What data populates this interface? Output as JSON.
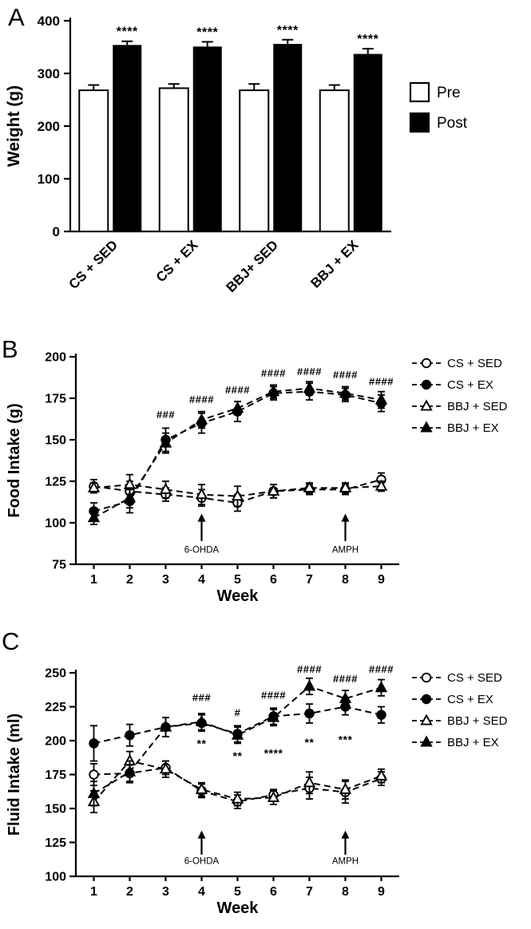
{
  "figure": {
    "background": "#ffffff",
    "ink": "#000000"
  },
  "panels": {
    "a": {
      "letter": "A"
    },
    "b": {
      "letter": "B"
    },
    "c": {
      "letter": "C"
    }
  },
  "chart_data": [
    {
      "id": "weight",
      "panel": "A",
      "type": "bar",
      "title": "",
      "ylabel": "Weight (g)",
      "xlabel": "",
      "ylim": [
        0,
        400
      ],
      "yticks": [
        0,
        100,
        200,
        300,
        400
      ],
      "categories": [
        "CS + SED",
        "CS + EX",
        "BBJ+ SED",
        "BBJ + EX"
      ],
      "series": [
        {
          "name": "Pre",
          "fill": "open",
          "values": [
            268,
            272,
            268,
            268
          ],
          "errors": [
            10,
            8,
            12,
            10
          ]
        },
        {
          "name": "Post",
          "fill": "solid",
          "values": [
            354,
            351,
            356,
            337
          ],
          "errors": [
            7,
            9,
            8,
            10
          ],
          "significance": [
            "****",
            "****",
            "****",
            "****"
          ]
        }
      ],
      "legend": [
        {
          "label": "Pre",
          "swatch": "open-square"
        },
        {
          "label": "Post",
          "swatch": "solid-square"
        }
      ]
    },
    {
      "id": "food-intake",
      "panel": "B",
      "type": "line",
      "title": "",
      "ylabel": "Food Intake (g)",
      "xlabel": "Week",
      "ylim": [
        75,
        200
      ],
      "yticks": [
        75,
        100,
        125,
        150,
        175,
        200
      ],
      "x": [
        1,
        2,
        3,
        4,
        5,
        6,
        7,
        8,
        9
      ],
      "series": [
        {
          "name": "CS + SED",
          "marker": "open-circle",
          "values": [
            122,
            119,
            117,
            115,
            112,
            119,
            120,
            120,
            126
          ],
          "errors": [
            4,
            6,
            4,
            5,
            5,
            4,
            3,
            3,
            4
          ]
        },
        {
          "name": "CS + EX",
          "marker": "solid-circle",
          "values": [
            107,
            113,
            150,
            160,
            167,
            178,
            179,
            177,
            172
          ],
          "errors": [
            5,
            7,
            7,
            6,
            6,
            4,
            5,
            4,
            5
          ]
        },
        {
          "name": "BBJ + SED",
          "marker": "open-triangle",
          "values": [
            121,
            123,
            120,
            117,
            116,
            119,
            121,
            121,
            122
          ],
          "errors": [
            3,
            6,
            5,
            6,
            6,
            4,
            3,
            3,
            3
          ]
        },
        {
          "name": "BBJ + EX",
          "marker": "solid-triangle",
          "values": [
            103,
            115,
            148,
            162,
            169,
            179,
            181,
            178,
            174
          ],
          "errors": [
            4,
            6,
            6,
            5,
            4,
            4,
            4,
            4,
            5
          ]
        }
      ],
      "annotations": {
        "hash": [
          {
            "x": 3,
            "y": 163,
            "text": "###"
          },
          {
            "x": 4,
            "y": 172,
            "text": "####"
          },
          {
            "x": 5,
            "y": 178,
            "text": "####"
          },
          {
            "x": 6,
            "y": 188,
            "text": "####"
          },
          {
            "x": 7,
            "y": 189,
            "text": "####"
          },
          {
            "x": 8,
            "y": 187,
            "text": "####"
          },
          {
            "x": 9,
            "y": 183,
            "text": "####"
          }
        ],
        "stars": [],
        "arrows": [
          {
            "x": 4,
            "y_from": 89,
            "y_to": 104,
            "label": "6-OHDA",
            "label_y": 82
          },
          {
            "x": 8,
            "y_from": 89,
            "y_to": 104,
            "label": "AMPH",
            "label_y": 82
          }
        ]
      },
      "legend": [
        {
          "label": "CS + SED",
          "marker": "open-circle"
        },
        {
          "label": "CS + EX",
          "marker": "solid-circle"
        },
        {
          "label": "BBJ + SED",
          "marker": "open-triangle"
        },
        {
          "label": "BBJ + EX",
          "marker": "solid-triangle"
        }
      ]
    },
    {
      "id": "fluid-intake",
      "panel": "C",
      "type": "line",
      "title": "",
      "ylabel": "Fluid Intake (ml)",
      "xlabel": "Week",
      "ylim": [
        100,
        250
      ],
      "yticks": [
        100,
        125,
        150,
        175,
        200,
        225,
        250
      ],
      "x": [
        1,
        2,
        3,
        4,
        5,
        6,
        7,
        8,
        9
      ],
      "series": [
        {
          "name": "CS + SED",
          "marker": "open-circle",
          "values": [
            175,
            176,
            180,
            163,
            155,
            160,
            165,
            162,
            172
          ],
          "errors": [
            8,
            6,
            5,
            5,
            5,
            4,
            8,
            8,
            5
          ]
        },
        {
          "name": "CS + EX",
          "marker": "solid-circle",
          "values": [
            198,
            204,
            210,
            213,
            205,
            218,
            220,
            225,
            219
          ],
          "errors": [
            13,
            8,
            7,
            6,
            6,
            6,
            7,
            6,
            6
          ]
        },
        {
          "name": "BBJ + SED",
          "marker": "open-triangle",
          "values": [
            155,
            185,
            179,
            164,
            157,
            158,
            169,
            164,
            174
          ],
          "errors": [
            8,
            7,
            6,
            5,
            5,
            5,
            8,
            7,
            5
          ]
        },
        {
          "name": "BBJ + EX",
          "marker": "solid-triangle",
          "values": [
            161,
            177,
            210,
            214,
            204,
            217,
            240,
            231,
            239
          ],
          "errors": [
            9,
            8,
            7,
            6,
            6,
            6,
            6,
            6,
            6
          ]
        }
      ],
      "annotations": {
        "hash": [
          {
            "x": 4,
            "y": 229,
            "text": "###"
          },
          {
            "x": 5,
            "y": 218,
            "text": "#"
          },
          {
            "x": 6,
            "y": 231,
            "text": "####"
          },
          {
            "x": 7,
            "y": 250,
            "text": "####"
          },
          {
            "x": 8,
            "y": 243,
            "text": "####"
          },
          {
            "x": 9,
            "y": 250,
            "text": "####"
          }
        ],
        "stars": [
          {
            "x": 4,
            "y": 195,
            "text": "**"
          },
          {
            "x": 5,
            "y": 186,
            "text": "**"
          },
          {
            "x": 6,
            "y": 188,
            "text": "****"
          },
          {
            "x": 7,
            "y": 196,
            "text": "**"
          },
          {
            "x": 8,
            "y": 198,
            "text": "***"
          }
        ],
        "arrows": [
          {
            "x": 4,
            "y_from": 116,
            "y_to": 132,
            "label": "6-OHDA",
            "label_y": 109
          },
          {
            "x": 8,
            "y_from": 116,
            "y_to": 132,
            "label": "AMPH",
            "label_y": 109
          }
        ]
      },
      "legend": [
        {
          "label": "CS + SED",
          "marker": "open-circle"
        },
        {
          "label": "CS + EX",
          "marker": "solid-circle"
        },
        {
          "label": "BBJ + SED",
          "marker": "open-triangle"
        },
        {
          "label": "BBJ + EX",
          "marker": "solid-triangle"
        }
      ]
    }
  ]
}
